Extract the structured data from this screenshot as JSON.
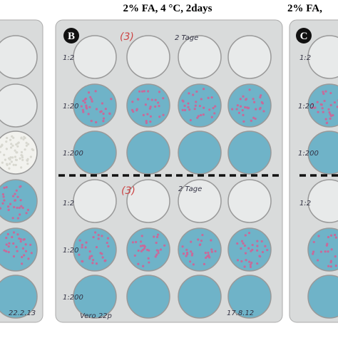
{
  "titles": {
    "center": "2% FA, 4 °C, 2days",
    "right": "2% FA,"
  },
  "panels": [
    {
      "annotations": [
        "22.2.13"
      ]
    },
    {
      "label": "B",
      "annotations": [
        "(3)",
        "2 Tage",
        "1:2",
        "1:20",
        "1:200",
        "(3)",
        "2 Tage",
        "1:2",
        "1:20",
        "1:200",
        "Vero 22p",
        "17.8.12"
      ]
    },
    {
      "label": "C",
      "annotations": [
        "1:2",
        "1:20",
        "1:200",
        "1:2"
      ]
    }
  ]
}
